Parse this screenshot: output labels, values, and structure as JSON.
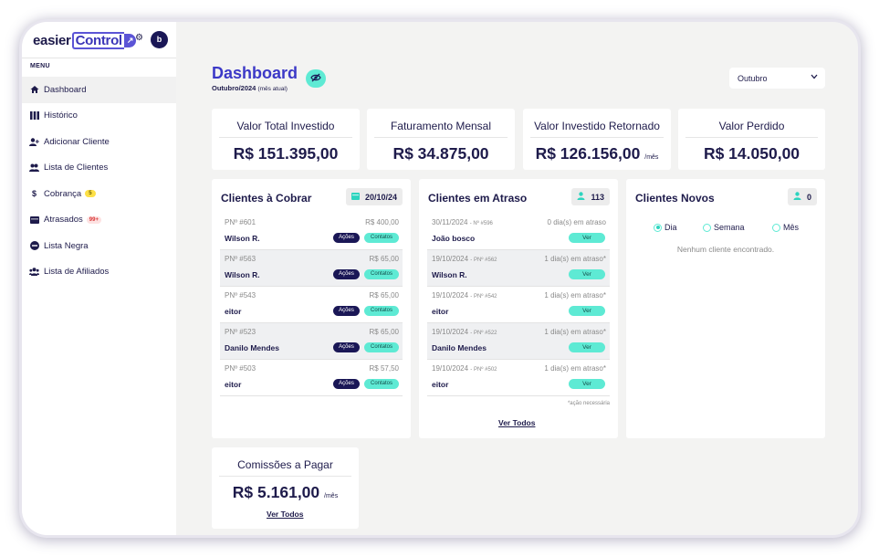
{
  "brand": {
    "name_part1": "easier",
    "name_part2": "Control",
    "logo_mark": "↗"
  },
  "user": {
    "initial": "b"
  },
  "sidebar": {
    "menu_label": "MENU",
    "items": [
      {
        "label": "Dashboard",
        "icon": "home-icon",
        "active": true
      },
      {
        "label": "Histórico",
        "icon": "columns-icon"
      },
      {
        "label": "Adicionar Cliente",
        "icon": "user-plus-icon"
      },
      {
        "label": "Lista de Clientes",
        "icon": "users-icon"
      },
      {
        "label": "Cobrança",
        "icon": "dollar-icon",
        "badge": "5"
      },
      {
        "label": "Atrasados",
        "icon": "calendar-icon",
        "badge": "99+"
      },
      {
        "label": "Lista Negra",
        "icon": "block-icon"
      },
      {
        "label": "Lista de Afiliados",
        "icon": "group-icon"
      }
    ]
  },
  "header": {
    "title": "Dashboard",
    "subtitle": "Outubro/2024",
    "subtitle_note": "(mês atual)",
    "month_select": "Outubro"
  },
  "stats": [
    {
      "title": "Valor Total Investido",
      "value": "R$ 151.395,00",
      "suffix": ""
    },
    {
      "title": "Faturamento Mensal",
      "value": "R$ 34.875,00",
      "suffix": ""
    },
    {
      "title": "Valor Investido Retornado",
      "value": "R$ 126.156,00",
      "suffix": "/mês"
    },
    {
      "title": "Valor Perdido",
      "value": "R$ 14.050,00",
      "suffix": ""
    }
  ],
  "cobrar": {
    "title": "Clientes à Cobrar",
    "date": "20/10/24",
    "actions_label": "Ações",
    "contacts_label": "Contatos",
    "rows": [
      {
        "pn": "PNº #601",
        "amount": "R$ 400,00",
        "name": "Wilson R."
      },
      {
        "pn": "PNº #563",
        "amount": "R$ 65,00",
        "name": "Wilson R."
      },
      {
        "pn": "PNº #543",
        "amount": "R$ 65,00",
        "name": "eitor"
      },
      {
        "pn": "PNº #523",
        "amount": "R$ 65,00",
        "name": "Danilo Mendes"
      },
      {
        "pn": "PNº #503",
        "amount": "R$ 57,50",
        "name": "eitor"
      }
    ]
  },
  "atraso": {
    "title": "Clientes em Atraso",
    "count": "113",
    "view_label": "Ver",
    "rows": [
      {
        "date": "30/11/2024",
        "pn": "- Nº #596",
        "status": "0 dia(s) em atraso",
        "name": "João bosco"
      },
      {
        "date": "19/10/2024",
        "pn": "- PNº #562",
        "status": "1 dia(s) em atraso*",
        "name": "Wilson R."
      },
      {
        "date": "19/10/2024",
        "pn": "- PNº #542",
        "status": "1 dia(s) em atraso*",
        "name": "eitor"
      },
      {
        "date": "19/10/2024",
        "pn": "- PNº #522",
        "status": "1 dia(s) em atraso*",
        "name": "Danilo Mendes"
      },
      {
        "date": "19/10/2024",
        "pn": "- PNº #502",
        "status": "1 dia(s) em atraso*",
        "name": "eitor"
      }
    ],
    "note": "*ação necessária",
    "see_all": "Ver Todos"
  },
  "novos": {
    "title": "Clientes Novos",
    "count": "0",
    "filters": [
      {
        "label": "Dia",
        "selected": true
      },
      {
        "label": "Semana",
        "selected": false
      },
      {
        "label": "Mês",
        "selected": false
      }
    ],
    "empty": "Nenhum cliente encontrado."
  },
  "comissoes": {
    "title": "Comissões a Pagar",
    "value": "R$ 5.161,00",
    "suffix": "/mês",
    "see_all": "Ver Todos"
  },
  "colors": {
    "accent": "#3c39c7",
    "teal": "#5eead4",
    "navy": "#1a1756"
  }
}
